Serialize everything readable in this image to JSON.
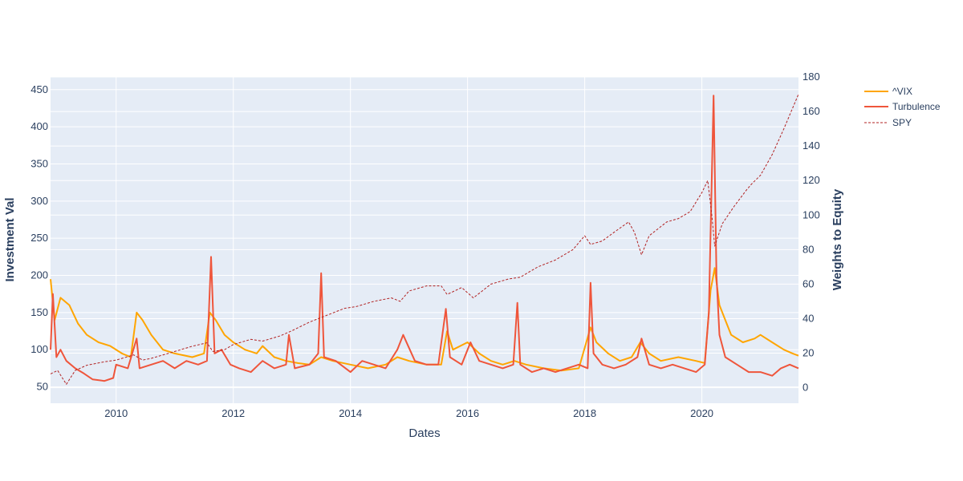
{
  "chart_data": {
    "type": "line",
    "xlabel": "Dates",
    "ylabel": "Investment Val",
    "y2label": "Weights to Equity",
    "x_range": [
      2008.88,
      2021.65
    ],
    "ylim": [
      28,
      467
    ],
    "y2lim": [
      -9,
      180
    ],
    "x_ticks": [
      2010,
      2012,
      2014,
      2016,
      2018,
      2020
    ],
    "y_ticks": [
      50,
      100,
      150,
      200,
      250,
      300,
      350,
      400,
      450
    ],
    "y2_ticks": [
      0,
      20,
      40,
      60,
      80,
      100,
      120,
      140,
      160,
      180
    ],
    "legend_position": "top-right",
    "series": [
      {
        "name": "^VIX",
        "axis": "y",
        "color": "#ffa500",
        "style": "solid",
        "points": [
          [
            2008.88,
            195
          ],
          [
            2008.95,
            140
          ],
          [
            2009.05,
            170
          ],
          [
            2009.2,
            160
          ],
          [
            2009.35,
            135
          ],
          [
            2009.5,
            120
          ],
          [
            2009.7,
            110
          ],
          [
            2009.9,
            105
          ],
          [
            2010.1,
            95
          ],
          [
            2010.25,
            90
          ],
          [
            2010.35,
            150
          ],
          [
            2010.45,
            140
          ],
          [
            2010.6,
            120
          ],
          [
            2010.8,
            100
          ],
          [
            2011.0,
            95
          ],
          [
            2011.3,
            90
          ],
          [
            2011.5,
            95
          ],
          [
            2011.6,
            150
          ],
          [
            2011.7,
            140
          ],
          [
            2011.85,
            120
          ],
          [
            2012.0,
            110
          ],
          [
            2012.2,
            100
          ],
          [
            2012.4,
            95
          ],
          [
            2012.5,
            105
          ],
          [
            2012.7,
            90
          ],
          [
            2012.9,
            85
          ],
          [
            2013.1,
            82
          ],
          [
            2013.3,
            80
          ],
          [
            2013.5,
            90
          ],
          [
            2013.7,
            85
          ],
          [
            2014.0,
            80
          ],
          [
            2014.3,
            75
          ],
          [
            2014.6,
            80
          ],
          [
            2014.8,
            90
          ],
          [
            2015.0,
            85
          ],
          [
            2015.3,
            80
          ],
          [
            2015.55,
            80
          ],
          [
            2015.65,
            125
          ],
          [
            2015.75,
            100
          ],
          [
            2016.0,
            110
          ],
          [
            2016.2,
            95
          ],
          [
            2016.4,
            85
          ],
          [
            2016.6,
            80
          ],
          [
            2016.8,
            85
          ],
          [
            2017.0,
            80
          ],
          [
            2017.3,
            75
          ],
          [
            2017.6,
            72
          ],
          [
            2017.9,
            75
          ],
          [
            2018.1,
            130
          ],
          [
            2018.2,
            110
          ],
          [
            2018.4,
            95
          ],
          [
            2018.6,
            85
          ],
          [
            2018.8,
            90
          ],
          [
            2018.95,
            110
          ],
          [
            2019.1,
            95
          ],
          [
            2019.3,
            85
          ],
          [
            2019.6,
            90
          ],
          [
            2019.9,
            85
          ],
          [
            2020.05,
            82
          ],
          [
            2020.15,
            180
          ],
          [
            2020.22,
            210
          ],
          [
            2020.3,
            160
          ],
          [
            2020.4,
            140
          ],
          [
            2020.5,
            120
          ],
          [
            2020.7,
            110
          ],
          [
            2020.9,
            115
          ],
          [
            2021.0,
            120
          ],
          [
            2021.2,
            110
          ],
          [
            2021.4,
            100
          ],
          [
            2021.55,
            95
          ],
          [
            2021.65,
            92
          ]
        ]
      },
      {
        "name": "Turbulence",
        "axis": "y",
        "color": "#ef553b",
        "style": "solid",
        "points": [
          [
            2008.88,
            100
          ],
          [
            2008.92,
            175
          ],
          [
            2008.98,
            90
          ],
          [
            2009.05,
            100
          ],
          [
            2009.15,
            85
          ],
          [
            2009.3,
            75
          ],
          [
            2009.45,
            68
          ],
          [
            2009.6,
            60
          ],
          [
            2009.8,
            58
          ],
          [
            2009.95,
            62
          ],
          [
            2010.0,
            80
          ],
          [
            2010.2,
            75
          ],
          [
            2010.35,
            115
          ],
          [
            2010.4,
            75
          ],
          [
            2010.6,
            80
          ],
          [
            2010.8,
            85
          ],
          [
            2011.0,
            75
          ],
          [
            2011.2,
            85
          ],
          [
            2011.4,
            80
          ],
          [
            2011.55,
            85
          ],
          [
            2011.62,
            225
          ],
          [
            2011.68,
            95
          ],
          [
            2011.8,
            100
          ],
          [
            2011.95,
            80
          ],
          [
            2012.1,
            75
          ],
          [
            2012.3,
            70
          ],
          [
            2012.5,
            85
          ],
          [
            2012.7,
            75
          ],
          [
            2012.9,
            80
          ],
          [
            2012.95,
            120
          ],
          [
            2013.05,
            75
          ],
          [
            2013.3,
            80
          ],
          [
            2013.45,
            95
          ],
          [
            2013.5,
            203
          ],
          [
            2013.55,
            90
          ],
          [
            2013.75,
            85
          ],
          [
            2014.0,
            70
          ],
          [
            2014.2,
            85
          ],
          [
            2014.4,
            80
          ],
          [
            2014.6,
            75
          ],
          [
            2014.8,
            100
          ],
          [
            2014.9,
            120
          ],
          [
            2015.1,
            85
          ],
          [
            2015.3,
            80
          ],
          [
            2015.5,
            80
          ],
          [
            2015.63,
            155
          ],
          [
            2015.7,
            90
          ],
          [
            2015.9,
            80
          ],
          [
            2016.05,
            110
          ],
          [
            2016.2,
            85
          ],
          [
            2016.4,
            80
          ],
          [
            2016.6,
            75
          ],
          [
            2016.78,
            80
          ],
          [
            2016.85,
            163
          ],
          [
            2016.9,
            80
          ],
          [
            2017.1,
            70
          ],
          [
            2017.3,
            75
          ],
          [
            2017.5,
            70
          ],
          [
            2017.7,
            75
          ],
          [
            2017.9,
            80
          ],
          [
            2018.05,
            75
          ],
          [
            2018.1,
            190
          ],
          [
            2018.15,
            95
          ],
          [
            2018.3,
            80
          ],
          [
            2018.5,
            75
          ],
          [
            2018.7,
            80
          ],
          [
            2018.9,
            90
          ],
          [
            2018.97,
            115
          ],
          [
            2019.1,
            80
          ],
          [
            2019.3,
            75
          ],
          [
            2019.5,
            80
          ],
          [
            2019.7,
            75
          ],
          [
            2019.9,
            70
          ],
          [
            2020.05,
            80
          ],
          [
            2020.12,
            150
          ],
          [
            2020.2,
            442
          ],
          [
            2020.25,
            200
          ],
          [
            2020.3,
            120
          ],
          [
            2020.4,
            90
          ],
          [
            2020.6,
            80
          ],
          [
            2020.8,
            70
          ],
          [
            2021.0,
            70
          ],
          [
            2021.2,
            65
          ],
          [
            2021.35,
            75
          ],
          [
            2021.5,
            80
          ],
          [
            2021.65,
            75
          ]
        ]
      },
      {
        "name": "SPY",
        "axis": "y2",
        "color": "#b22222",
        "style": "dash",
        "points": [
          [
            2008.88,
            8
          ],
          [
            2009.0,
            10
          ],
          [
            2009.15,
            2
          ],
          [
            2009.3,
            10
          ],
          [
            2009.5,
            13
          ],
          [
            2009.8,
            15
          ],
          [
            2010.0,
            16
          ],
          [
            2010.3,
            19
          ],
          [
            2010.45,
            16
          ],
          [
            2010.6,
            17
          ],
          [
            2010.9,
            20
          ],
          [
            2011.3,
            24
          ],
          [
            2011.55,
            26
          ],
          [
            2011.65,
            21
          ],
          [
            2011.85,
            22
          ],
          [
            2012.0,
            25
          ],
          [
            2012.3,
            28
          ],
          [
            2012.5,
            27
          ],
          [
            2012.8,
            30
          ],
          [
            2013.0,
            33
          ],
          [
            2013.3,
            38
          ],
          [
            2013.6,
            42
          ],
          [
            2013.9,
            46
          ],
          [
            2014.1,
            47
          ],
          [
            2014.4,
            50
          ],
          [
            2014.7,
            52
          ],
          [
            2014.85,
            50
          ],
          [
            2015.0,
            56
          ],
          [
            2015.3,
            59
          ],
          [
            2015.55,
            59
          ],
          [
            2015.65,
            54
          ],
          [
            2015.9,
            58
          ],
          [
            2016.1,
            52
          ],
          [
            2016.4,
            60
          ],
          [
            2016.7,
            63
          ],
          [
            2016.9,
            64
          ],
          [
            2017.2,
            70
          ],
          [
            2017.5,
            74
          ],
          [
            2017.8,
            80
          ],
          [
            2018.0,
            88
          ],
          [
            2018.1,
            83
          ],
          [
            2018.3,
            85
          ],
          [
            2018.5,
            90
          ],
          [
            2018.75,
            96
          ],
          [
            2018.85,
            90
          ],
          [
            2018.97,
            77
          ],
          [
            2019.1,
            88
          ],
          [
            2019.4,
            96
          ],
          [
            2019.6,
            98
          ],
          [
            2019.8,
            102
          ],
          [
            2020.0,
            113
          ],
          [
            2020.1,
            120
          ],
          [
            2020.17,
            100
          ],
          [
            2020.22,
            82
          ],
          [
            2020.35,
            95
          ],
          [
            2020.55,
            105
          ],
          [
            2020.75,
            114
          ],
          [
            2020.85,
            118
          ],
          [
            2021.0,
            123
          ],
          [
            2021.2,
            135
          ],
          [
            2021.4,
            150
          ],
          [
            2021.55,
            162
          ],
          [
            2021.65,
            170
          ]
        ]
      }
    ]
  }
}
